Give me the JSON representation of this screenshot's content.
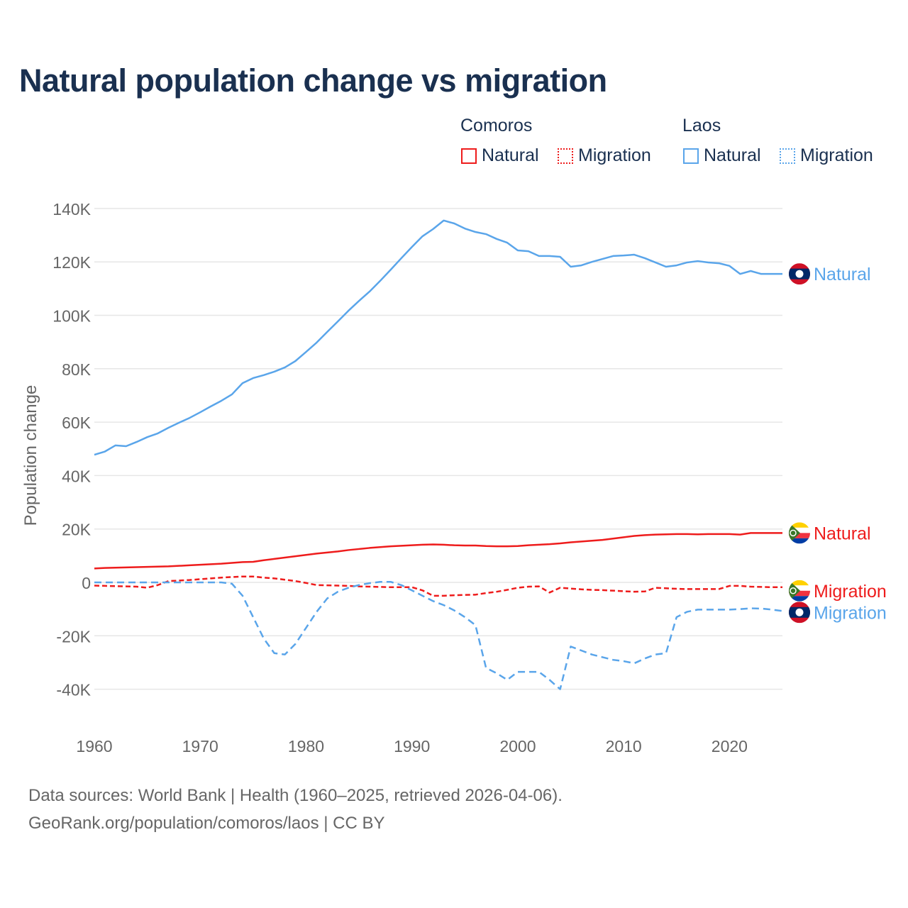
{
  "chart_data": {
    "type": "line",
    "title": "Natural population change vs migration",
    "xlabel": "",
    "ylabel": "Population change",
    "xlim": [
      1960,
      2025
    ],
    "ylim": [
      -50000,
      140000
    ],
    "grid": true,
    "x_ticks": [
      1960,
      1970,
      1980,
      1990,
      2000,
      2010,
      2020
    ],
    "x_tick_labels": [
      "1960",
      "1970",
      "1980",
      "1990",
      "2000",
      "2010",
      "2020"
    ],
    "y_ticks": [
      -40000,
      -20000,
      0,
      20000,
      40000,
      60000,
      80000,
      100000,
      120000,
      140000
    ],
    "y_tick_labels": [
      "-40K",
      "-20K",
      "0",
      "20K",
      "40K",
      "60K",
      "80K",
      "100K",
      "120K",
      "140K"
    ],
    "legend": {
      "placement": "top-right",
      "groups": [
        {
          "label": "Comoros",
          "items": [
            "Natural",
            "Migration"
          ]
        },
        {
          "label": "Laos",
          "items": [
            "Natural",
            "Migration"
          ]
        }
      ]
    },
    "x": [
      1960,
      1961,
      1962,
      1963,
      1964,
      1965,
      1966,
      1967,
      1968,
      1969,
      1970,
      1971,
      1972,
      1973,
      1974,
      1975,
      1976,
      1977,
      1978,
      1979,
      1980,
      1981,
      1982,
      1983,
      1984,
      1985,
      1986,
      1987,
      1988,
      1989,
      1990,
      1991,
      1992,
      1993,
      1994,
      1995,
      1996,
      1997,
      1998,
      1999,
      2000,
      2001,
      2002,
      2003,
      2004,
      2005,
      2006,
      2007,
      2008,
      2009,
      2010,
      2011,
      2012,
      2013,
      2014,
      2015,
      2016,
      2017,
      2018,
      2019,
      2020,
      2021,
      2022,
      2023,
      2024,
      2025
    ],
    "series": [
      {
        "name": "Natural",
        "country": "Comoros",
        "color": "#ee1c1c",
        "dash": "solid",
        "values": [
          5200,
          5400,
          5500,
          5600,
          5700,
          5800,
          5900,
          6000,
          6200,
          6400,
          6600,
          6800,
          7000,
          7300,
          7600,
          7700,
          8300,
          8800,
          9300,
          9800,
          10300,
          10800,
          11200,
          11600,
          12100,
          12500,
          12900,
          13200,
          13500,
          13700,
          13900,
          14100,
          14200,
          14100,
          13900,
          13800,
          13800,
          13600,
          13500,
          13500,
          13600,
          13900,
          14100,
          14300,
          14600,
          15000,
          15300,
          15600,
          15900,
          16400,
          16900,
          17400,
          17700,
          17900,
          18000,
          18100,
          18100,
          18000,
          18100,
          18100,
          18100,
          17900,
          18500,
          18500,
          18500,
          18500
        ]
      },
      {
        "name": "Migration",
        "country": "Comoros",
        "color": "#ee1c1c",
        "dash": "dashed",
        "values": [
          -1200,
          -1300,
          -1400,
          -1500,
          -1600,
          -2000,
          -1000,
          500,
          700,
          900,
          1200,
          1500,
          1800,
          2000,
          2200,
          2200,
          1800,
          1500,
          1000,
          500,
          -200,
          -1000,
          -1100,
          -1200,
          -1300,
          -1500,
          -1600,
          -1700,
          -1800,
          -1800,
          -1800,
          -3000,
          -5000,
          -5000,
          -4800,
          -4700,
          -4600,
          -4000,
          -3500,
          -2800,
          -2000,
          -1600,
          -1500,
          -3800,
          -2000,
          -2300,
          -2600,
          -2800,
          -2900,
          -3100,
          -3300,
          -3500,
          -3400,
          -2000,
          -2200,
          -2400,
          -2500,
          -2500,
          -2500,
          -2500,
          -1300,
          -1300,
          -1600,
          -1700,
          -1800,
          -1800
        ]
      },
      {
        "name": "Natural",
        "country": "Laos",
        "color": "#5aa5ea",
        "dash": "solid",
        "values": [
          47800,
          49000,
          51300,
          51000,
          52600,
          54400,
          55800,
          57900,
          59800,
          61600,
          63700,
          65900,
          68000,
          70400,
          74600,
          76500,
          77600,
          78900,
          80500,
          82900,
          86300,
          89800,
          93800,
          97700,
          101700,
          105400,
          108900,
          112900,
          117100,
          121400,
          125600,
          129600,
          132300,
          135500,
          134400,
          132500,
          131200,
          130400,
          128600,
          127200,
          124300,
          124000,
          122200,
          122200,
          121900,
          118200,
          118700,
          120000,
          121100,
          122200,
          122400,
          122700,
          121400,
          119800,
          118200,
          118700,
          119800,
          120300,
          119800,
          119500,
          118500,
          115500,
          116600,
          115500,
          115500,
          115500
        ]
      },
      {
        "name": "Migration",
        "country": "Laos",
        "color": "#5aa5ea",
        "dash": "dashed",
        "values": [
          0,
          0,
          0,
          0,
          0,
          0,
          0,
          0,
          0,
          0,
          0,
          0,
          0,
          -500,
          -5000,
          -13000,
          -21000,
          -26500,
          -27000,
          -23000,
          -17000,
          -11000,
          -6000,
          -3500,
          -2000,
          -1000,
          -300,
          200,
          200,
          -1000,
          -3000,
          -5000,
          -7000,
          -8500,
          -10500,
          -13000,
          -16000,
          -32000,
          -34000,
          -36500,
          -33500,
          -33500,
          -33500,
          -36500,
          -40000,
          -24000,
          -25500,
          -27000,
          -28000,
          -29000,
          -29500,
          -30300,
          -28500,
          -27000,
          -26500,
          -13000,
          -11000,
          -10200,
          -10200,
          -10200,
          -10200,
          -10000,
          -9700,
          -9800,
          -10200,
          -10700
        ]
      }
    ],
    "end_labels": [
      "Natural",
      "Natural",
      "Migration",
      "Migration"
    ]
  },
  "footer": {
    "line1": "Data sources: World Bank | Health (1960–2025, retrieved 2026-04-06).",
    "line2": "GeoRank.org/population/comoros/laos | CC BY"
  }
}
